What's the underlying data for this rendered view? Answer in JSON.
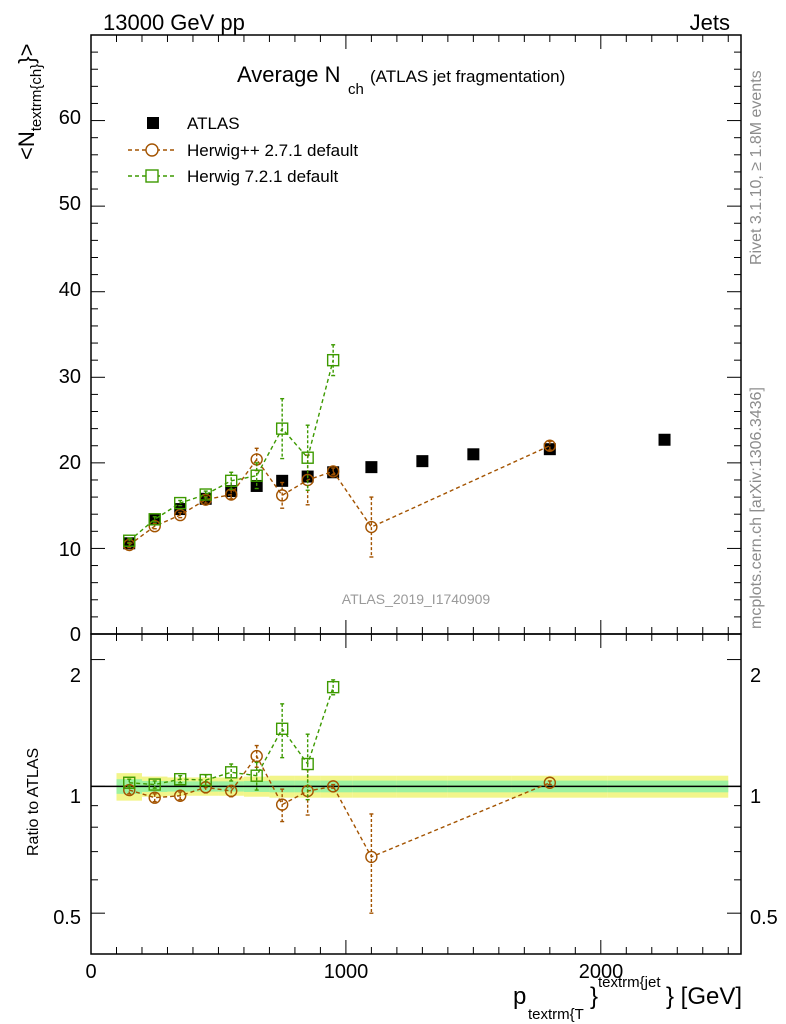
{
  "header": {
    "left": "13000 GeV pp",
    "right": "Jets"
  },
  "side_labels": {
    "top": "Rivet 3.1.10, ≥ 1.8M events",
    "bottom": "mcplots.cern.ch [arXiv:1306.3436]"
  },
  "chart_data": {
    "type": "scatter",
    "title_main": "Average N",
    "title_sub": "ch",
    "title_rest": "(ATLAS jet fragmentation)",
    "analysis_label": "ATLAS_2019_I1740909",
    "y_label": {
      "open": "<N",
      "sub": "textrm{ch}",
      "close": "}>"
    },
    "ratio_y_label": "Ratio to ATLAS",
    "x_label": {
      "p": "p",
      "sub": "textrm{T",
      "brace": "}",
      "sup": "textrm{jet",
      "tail": "} [GeV]"
    },
    "xlim": [
      0,
      2550
    ],
    "ylim": [
      0,
      70
    ],
    "ratio_ylim": [
      0.4,
      2.3
    ],
    "x_ticks": [
      "0",
      "1000",
      "2000"
    ],
    "y_ticks": [
      "0",
      "10",
      "20",
      "30",
      "40",
      "50",
      "60"
    ],
    "ratio_ticks": [
      "0.5",
      "1",
      "2"
    ],
    "series": [
      {
        "name": "ATLAS",
        "color": "#000000",
        "x": [
          150,
          250,
          350,
          450,
          550,
          650,
          750,
          850,
          950,
          1100,
          1300,
          1500,
          1800,
          2250
        ],
        "y": [
          10.6,
          13.4,
          14.6,
          15.8,
          16.7,
          17.3,
          17.9,
          18.4,
          18.9,
          19.5,
          20.2,
          21.0,
          21.6,
          22.7
        ]
      },
      {
        "name": "Herwig++ 2.7.1 default",
        "color": "#a35300",
        "x": [
          150,
          250,
          350,
          450,
          550,
          650,
          750,
          850,
          950,
          1100,
          1800
        ],
        "y": [
          10.4,
          12.6,
          13.9,
          15.7,
          16.3,
          20.4,
          16.2,
          18.0,
          19.0,
          12.5,
          22.0
        ],
        "err": [
          0.3,
          0.3,
          0.3,
          0.4,
          0.5,
          1.3,
          1.5,
          2.9,
          0.4,
          3.5,
          0.5
        ],
        "ratio": [
          0.98,
          0.94,
          0.95,
          0.995,
          0.975,
          1.18,
          0.905,
          0.975,
          1.0,
          0.68,
          1.02
        ],
        "ratio_err": [
          0.02,
          0.02,
          0.02,
          0.03,
          0.03,
          0.07,
          0.08,
          0.12,
          0.01,
          0.18,
          0.01
        ]
      },
      {
        "name": "Herwig 7.2.1 default",
        "color": "#3d9a00",
        "x": [
          150,
          250,
          350,
          450,
          550,
          650,
          750,
          850,
          950
        ],
        "y": [
          10.9,
          13.4,
          15.3,
          16.3,
          17.9,
          18.5,
          24.0,
          20.6,
          32.0
        ],
        "err": [
          0.3,
          0.3,
          0.3,
          0.4,
          1.0,
          1.5,
          3.5,
          3.8,
          1.8
        ],
        "ratio": [
          1.02,
          1.01,
          1.04,
          1.035,
          1.08,
          1.06,
          1.37,
          1.13,
          1.72
        ],
        "ratio_err": [
          0.02,
          0.02,
          0.02,
          0.03,
          0.05,
          0.08,
          0.2,
          0.2,
          0.07
        ]
      }
    ]
  }
}
